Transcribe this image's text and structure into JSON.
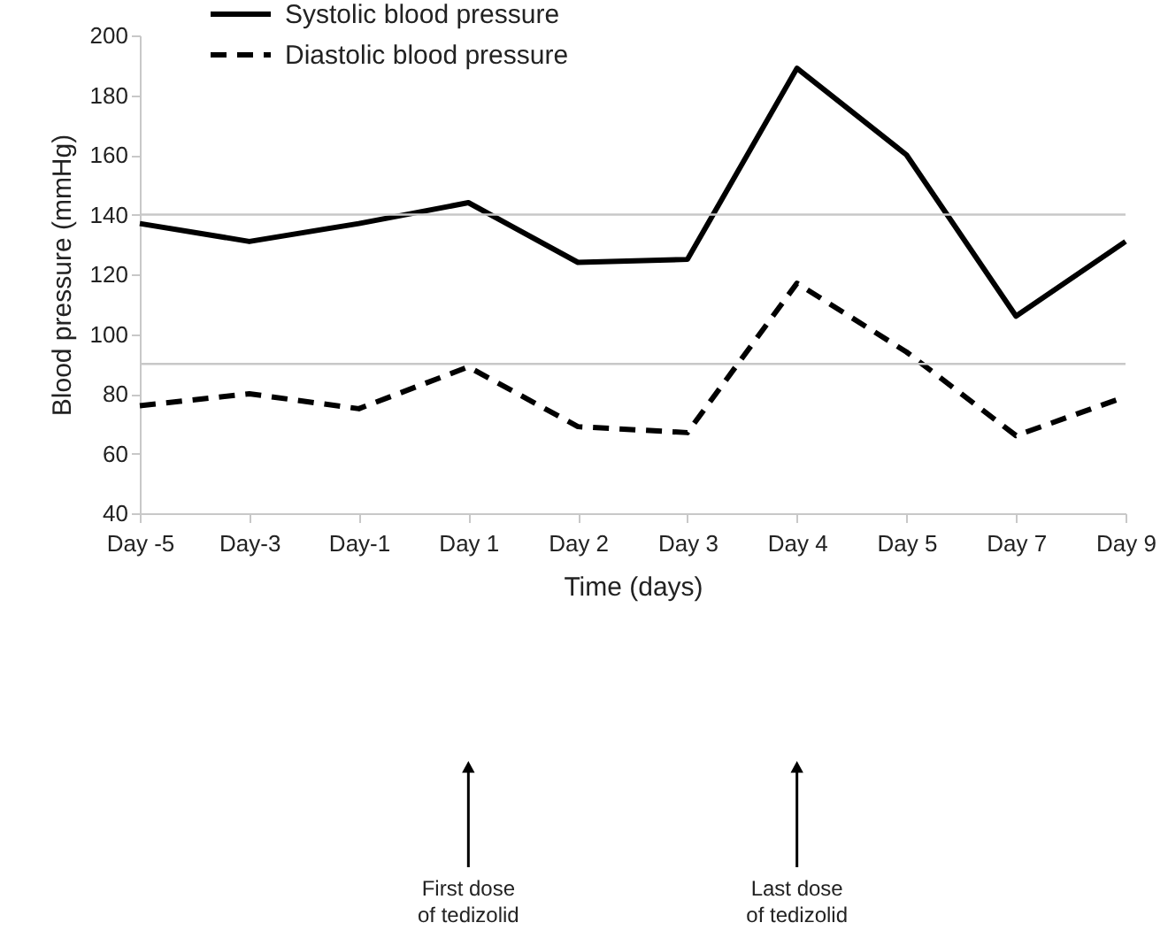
{
  "chart_data": {
    "type": "line",
    "xlabel": "Time (days)",
    "ylabel": "Blood pressure (mmHg)",
    "categories": [
      "Day -5",
      "Day-3",
      "Day-1",
      "Day 1",
      "Day 2",
      "Day 3",
      "Day 4",
      "Day 5",
      "Day 7",
      "Day 9"
    ],
    "series": [
      {
        "name": "Systolic blood pressure",
        "color": "#000000",
        "line_style": "solid",
        "values": [
          137,
          131,
          137,
          144,
          124,
          125,
          189,
          160,
          106,
          131
        ]
      },
      {
        "name": "Diastolic blood pressure",
        "color": "#000000",
        "line_style": "dashed",
        "values": [
          76,
          80,
          75,
          89,
          69,
          67,
          117,
          94,
          66,
          79
        ]
      }
    ],
    "ylim": [
      40,
      200
    ],
    "yticks": [
      40,
      60,
      80,
      100,
      120,
      140,
      160,
      180,
      200
    ],
    "ref_lines": [
      {
        "axis": "y",
        "value": 140,
        "color": "#c8c8c8"
      },
      {
        "axis": "y",
        "value": 90,
        "color": "#c8c8c8"
      }
    ],
    "annotations": [
      "First dose\nof tedizolid",
      "Last dose\nof tedizolid"
    ],
    "grid": false,
    "legend": "top left",
    "marker": "none"
  }
}
